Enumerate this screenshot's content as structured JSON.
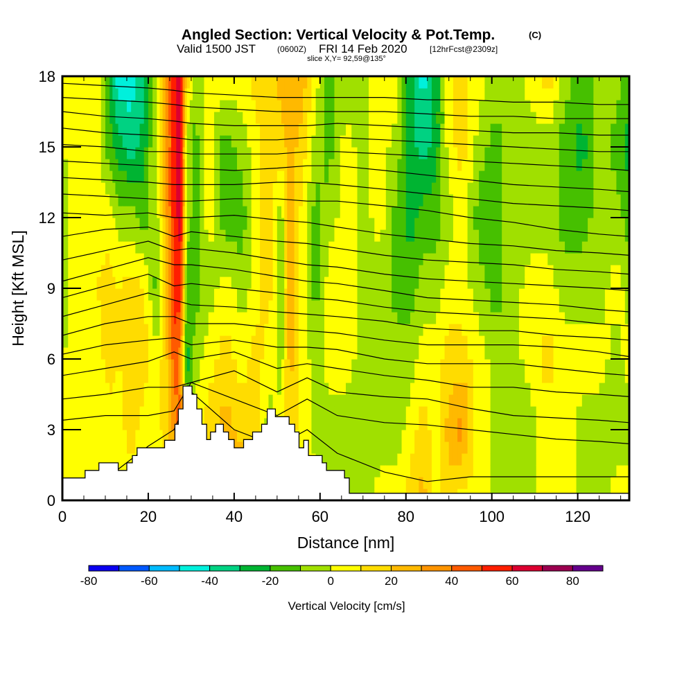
{
  "chart_data": {
    "type": "heatmap",
    "title": "Angled Section: Vertical Velocity & Pot.Temp.",
    "title_mark": "(C)",
    "subtitle_valid": "Valid 1500 JST",
    "subtitle_utc": "(0600Z)",
    "subtitle_date": "FRI 14 Feb 2020",
    "subtitle_fcst": "[12hrFcst@2309z]",
    "subtitle_slice": "slice X,Y= 92,59@135°",
    "xlabel": "Distance [nm]",
    "ylabel": "Height [Kft MSL]",
    "xlim": [
      0,
      132
    ],
    "ylim": [
      0,
      18
    ],
    "xticks": [
      0,
      20,
      40,
      60,
      80,
      100,
      120
    ],
    "xtick_labels": [
      "0",
      "20",
      "40",
      "60",
      "80",
      "100",
      "120"
    ],
    "x_minor_step": 5,
    "yticks": [
      0,
      3,
      6,
      9,
      12,
      15,
      18
    ],
    "ytick_labels": [
      "0",
      "3",
      "6",
      "9",
      "12",
      "15",
      "18"
    ],
    "colorbar": {
      "title": "Vertical Velocity [cm/s]",
      "bounds": [
        -80,
        -70,
        -60,
        -50,
        -40,
        -30,
        -20,
        -10,
        0,
        10,
        20,
        30,
        40,
        50,
        60,
        70,
        80,
        90
      ],
      "colors": [
        "#0a00f0",
        "#0058ff",
        "#00bbff",
        "#00f0dc",
        "#00d282",
        "#00b432",
        "#46c000",
        "#a0e000",
        "#ffff00",
        "#ffdc00",
        "#ffb900",
        "#ff9400",
        "#ff5a00",
        "#ff1e00",
        "#dc0030",
        "#9b0050",
        "#64008c"
      ],
      "tick_values": [
        -80,
        -60,
        -40,
        -20,
        0,
        20,
        40,
        60,
        80
      ],
      "tick_labels": [
        "-80",
        "-60",
        "-40",
        "-20",
        "0",
        "20",
        "40",
        "60",
        "80"
      ]
    },
    "field_columns_x_nm": [
      0,
      4,
      8,
      11,
      13,
      16,
      19,
      22,
      24,
      26,
      27.5,
      29,
      31,
      34,
      38,
      42,
      45,
      48,
      51,
      53,
      56,
      59,
      62,
      66,
      70,
      74,
      78,
      81,
      84,
      87,
      90,
      93,
      97,
      101,
      105,
      109,
      113,
      117,
      121,
      125,
      129,
      132
    ],
    "vertical_velocity_cms": {
      "heights_kft": [
        0,
        3,
        6,
        9,
        12,
        15,
        18
      ],
      "columns": [
        [
          5,
          5,
          0,
          -5,
          -5,
          0,
          5
        ],
        [
          5,
          5,
          5,
          5,
          5,
          5,
          10
        ],
        [
          5,
          5,
          5,
          10,
          5,
          5,
          5
        ],
        [
          -5,
          5,
          15,
          15,
          5,
          -15,
          -25
        ],
        [
          5,
          5,
          10,
          10,
          -5,
          -25,
          -45
        ],
        [
          5,
          15,
          15,
          15,
          -5,
          -35,
          -45
        ],
        [
          5,
          5,
          15,
          10,
          -15,
          -25,
          -35
        ],
        [
          -5,
          5,
          5,
          -15,
          -5,
          5,
          5
        ],
        [
          5,
          15,
          15,
          15,
          25,
          25,
          25
        ],
        [
          5,
          35,
          45,
          55,
          55,
          55,
          55
        ],
        [
          5,
          45,
          35,
          55,
          65,
          65,
          65
        ],
        [
          5,
          -5,
          -25,
          -15,
          -5,
          -5,
          15
        ],
        [
          5,
          5,
          -5,
          -15,
          -15,
          -15,
          -5
        ],
        [
          25,
          15,
          5,
          -5,
          5,
          5,
          5
        ],
        [
          35,
          25,
          15,
          5,
          -15,
          -15,
          5
        ],
        [
          35,
          15,
          5,
          -5,
          -15,
          -5,
          5
        ],
        [
          25,
          15,
          15,
          5,
          5,
          5,
          15
        ],
        [
          -15,
          -5,
          5,
          15,
          15,
          15,
          15
        ],
        [
          -25,
          5,
          -5,
          -5,
          -5,
          15,
          25
        ],
        [
          5,
          15,
          25,
          25,
          25,
          25,
          25
        ],
        [
          5,
          5,
          5,
          5,
          5,
          15,
          25
        ],
        [
          5,
          -5,
          -5,
          -15,
          -15,
          -5,
          5
        ],
        [
          -5,
          -5,
          5,
          5,
          -5,
          -15,
          -15
        ],
        [
          -5,
          -5,
          5,
          5,
          5,
          5,
          -5
        ],
        [
          -5,
          -5,
          -5,
          -5,
          -5,
          -5,
          -5
        ],
        [
          5,
          -5,
          -5,
          -5,
          5,
          5,
          5
        ],
        [
          5,
          -5,
          -5,
          -15,
          -15,
          -5,
          5
        ],
        [
          15,
          5,
          -5,
          -15,
          -25,
          -25,
          -25
        ],
        [
          25,
          15,
          5,
          -5,
          -15,
          -35,
          -45
        ],
        [
          5,
          5,
          5,
          -5,
          -15,
          -25,
          -25
        ],
        [
          15,
          25,
          15,
          5,
          -5,
          5,
          5
        ],
        [
          5,
          35,
          15,
          5,
          5,
          15,
          15
        ],
        [
          5,
          5,
          5,
          -5,
          -15,
          -5,
          5
        ],
        [
          -5,
          -5,
          -5,
          -15,
          -15,
          -15,
          -5
        ],
        [
          -5,
          -5,
          -5,
          -5,
          -5,
          -5,
          -5
        ],
        [
          -5,
          -5,
          5,
          5,
          -5,
          -5,
          5
        ],
        [
          5,
          5,
          15,
          5,
          -5,
          -5,
          15
        ],
        [
          5,
          5,
          5,
          -5,
          -15,
          -15,
          -5
        ],
        [
          -5,
          -5,
          5,
          -5,
          -15,
          -25,
          -15
        ],
        [
          -5,
          -5,
          5,
          -5,
          -5,
          -5,
          -5
        ],
        [
          5,
          -5,
          -5,
          5,
          -5,
          -15,
          -5
        ],
        [
          5,
          -5,
          5,
          -5,
          -15,
          -25,
          -15
        ]
      ]
    },
    "terrain_profile": {
      "x_nm": [
        0,
        5.3,
        5.3,
        8.5,
        8.5,
        13,
        13,
        15,
        15,
        16.3,
        16.3,
        17.4,
        17.4,
        23.8,
        23.8,
        26.2,
        26.2,
        27,
        27,
        28.1,
        28.1,
        30.2,
        30.2,
        31.3,
        31.3,
        32.5,
        32.5,
        33.6,
        33.6,
        34.5,
        34.5,
        35.7,
        35.7,
        37.5,
        37.5,
        38.7,
        38.7,
        40,
        40,
        42.2,
        42.2,
        44.3,
        44.3,
        46.4,
        46.4,
        47.7,
        47.7,
        49.6,
        49.6,
        52.8,
        52.8,
        54.1,
        54.1,
        55.1,
        55.1,
        56.2,
        56.2,
        57.3,
        57.3,
        60.5,
        60.5,
        61.5,
        61.5,
        65.7,
        65.7,
        66.8,
        66.8,
        71,
        71,
        132
      ],
      "height_kft": [
        0.95,
        0.95,
        1.27,
        1.27,
        1.59,
        1.59,
        1.27,
        1.27,
        1.59,
        1.59,
        1.9,
        1.9,
        2.23,
        2.23,
        2.55,
        2.55,
        3.23,
        3.23,
        3.88,
        3.88,
        4.85,
        4.85,
        4.5,
        4.5,
        3.88,
        3.88,
        3.23,
        3.23,
        2.58,
        2.58,
        2.9,
        2.9,
        3.23,
        3.23,
        2.9,
        2.9,
        2.58,
        2.58,
        2.23,
        2.23,
        2.58,
        2.58,
        2.9,
        2.9,
        3.23,
        3.23,
        3.88,
        3.88,
        3.55,
        3.55,
        3.23,
        3.23,
        2.9,
        2.9,
        2.23,
        2.23,
        2.55,
        2.55,
        1.9,
        1.9,
        1.59,
        1.59,
        1.27,
        1.27,
        0.95,
        0.95,
        0.3,
        0.3,
        0.3,
        0.3
      ]
    },
    "theta_contours_kft_at_x": {
      "x_nm": [
        0,
        10,
        20,
        26,
        30,
        40,
        50,
        57,
        64,
        75,
        85,
        95,
        105,
        115,
        125,
        132
      ],
      "levels_kft": [
        [
          0.9,
          0.9,
          2.3,
          3.0,
          4.6,
          3.0,
          2.3,
          3.0,
          2.0,
          1.2,
          0.8,
          1.0,
          1.0,
          1.0,
          1.0,
          1.0
        ],
        [
          3.4,
          3.6,
          3.6,
          3.8,
          5.0,
          4.3,
          3.6,
          4.3,
          3.6,
          3.3,
          3.2,
          3.0,
          2.8,
          2.6,
          2.5,
          2.4
        ],
        [
          4.3,
          4.5,
          4.8,
          4.8,
          5.0,
          5.5,
          4.6,
          5.2,
          4.6,
          4.4,
          4.3,
          3.9,
          3.6,
          3.5,
          3.4,
          3.3
        ],
        [
          5.3,
          5.6,
          5.9,
          6.3,
          6.0,
          6.3,
          5.6,
          5.8,
          5.6,
          5.3,
          5.1,
          4.8,
          4.8,
          4.6,
          4.5,
          4.4
        ],
        [
          6.2,
          6.6,
          6.8,
          6.9,
          6.6,
          6.8,
          6.5,
          6.5,
          6.4,
          6.0,
          5.8,
          5.8,
          5.8,
          5.6,
          5.4,
          5.3
        ],
        [
          7.0,
          7.5,
          7.8,
          7.8,
          7.5,
          7.5,
          7.3,
          7.2,
          7.1,
          6.8,
          6.6,
          6.6,
          6.6,
          6.5,
          6.3,
          6.1
        ],
        [
          7.8,
          8.3,
          8.8,
          8.5,
          8.3,
          8.2,
          8.0,
          7.9,
          7.8,
          7.6,
          7.3,
          7.2,
          7.2,
          7.0,
          6.9,
          6.8
        ],
        [
          8.6,
          9.1,
          9.6,
          9.1,
          9.2,
          9.0,
          8.8,
          8.6,
          8.5,
          8.2,
          8.0,
          7.9,
          7.8,
          7.7,
          7.5,
          7.4
        ],
        [
          9.3,
          9.8,
          10.3,
          10.0,
          10.0,
          9.8,
          9.5,
          9.3,
          9.2,
          8.9,
          8.6,
          8.5,
          8.4,
          8.3,
          8.1,
          8.0
        ],
        [
          10.2,
          10.6,
          11.0,
          10.6,
          10.7,
          10.5,
          10.2,
          10.0,
          9.9,
          9.6,
          9.4,
          9.3,
          9.2,
          9.1,
          9.0,
          8.9
        ],
        [
          11.2,
          11.5,
          11.6,
          11.2,
          11.4,
          11.2,
          11.0,
          10.9,
          10.7,
          10.4,
          10.2,
          10.1,
          10.0,
          9.8,
          9.7,
          9.6
        ],
        [
          12.2,
          12.1,
          12.2,
          12.0,
          12.0,
          12.1,
          11.9,
          11.8,
          11.6,
          11.3,
          11.1,
          10.9,
          10.8,
          10.6,
          10.5,
          10.4
        ],
        [
          13.0,
          12.9,
          12.8,
          12.7,
          12.7,
          12.8,
          12.8,
          12.7,
          12.7,
          12.5,
          12.3,
          12.0,
          11.8,
          11.5,
          11.3,
          11.2
        ],
        [
          13.7,
          13.6,
          13.5,
          13.4,
          13.4,
          13.4,
          13.5,
          13.5,
          13.4,
          13.2,
          13.0,
          12.8,
          12.6,
          12.5,
          12.4,
          12.3
        ],
        [
          14.4,
          14.3,
          14.2,
          14.1,
          14.1,
          14.0,
          14.1,
          14.2,
          14.2,
          14.0,
          13.8,
          13.6,
          13.4,
          13.3,
          13.2,
          13.1
        ],
        [
          15.1,
          15.0,
          14.8,
          14.8,
          14.7,
          14.7,
          14.7,
          14.8,
          14.8,
          14.7,
          14.6,
          14.4,
          14.3,
          14.2,
          14.1,
          14.0
        ],
        [
          15.8,
          15.6,
          15.5,
          15.4,
          15.3,
          15.3,
          15.3,
          15.4,
          15.4,
          15.3,
          15.2,
          15.1,
          15.0,
          14.9,
          14.8,
          14.8
        ],
        [
          16.5,
          16.3,
          16.2,
          16.1,
          16.0,
          15.9,
          15.9,
          15.9,
          16.0,
          15.9,
          15.8,
          15.7,
          15.6,
          15.6,
          15.5,
          15.5
        ],
        [
          17.1,
          17.0,
          16.9,
          16.8,
          16.7,
          16.6,
          16.5,
          16.5,
          16.5,
          16.5,
          16.4,
          16.3,
          16.3,
          16.2,
          16.2,
          16.2
        ],
        [
          17.7,
          17.6,
          17.5,
          17.4,
          17.3,
          17.2,
          17.1,
          17.1,
          17.1,
          17.1,
          17.0,
          17.0,
          16.9,
          16.9,
          16.8,
          16.8
        ]
      ]
    }
  }
}
